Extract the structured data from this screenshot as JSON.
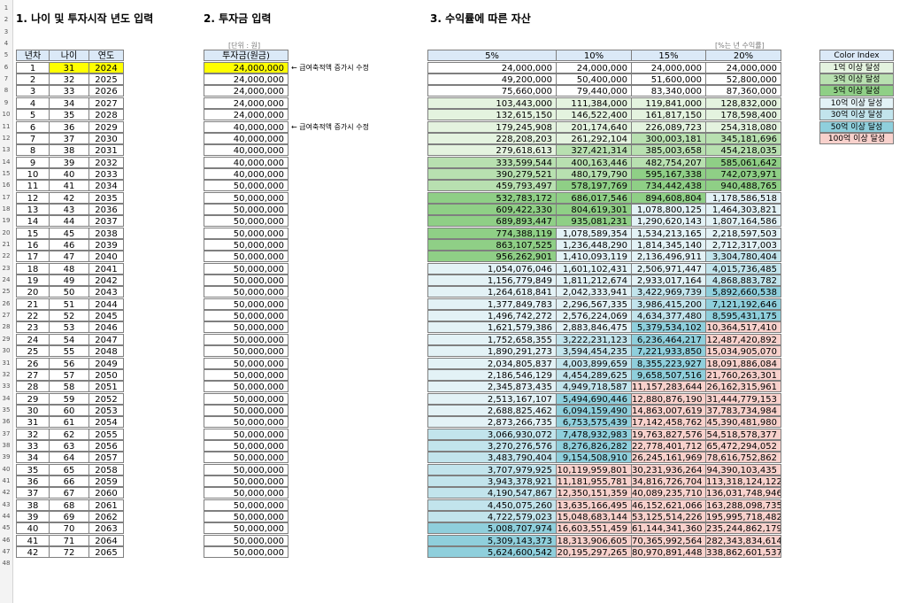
{
  "titles": {
    "section1": "1. 나이 및 투자시작 년도 입력",
    "section2": "2. 투자금 입력",
    "section3": "3. 수익률에 따른 자산"
  },
  "unit_label": "[단위 : 원]",
  "rate_label": "[%는 년 수익률]",
  "table1": {
    "headers": [
      "년차",
      "나이",
      "연도"
    ],
    "rows": [
      [
        "1",
        "31",
        "2024"
      ],
      [
        "2",
        "32",
        "2025"
      ],
      [
        "3",
        "33",
        "2026"
      ],
      [
        "4",
        "34",
        "2027"
      ],
      [
        "5",
        "35",
        "2028"
      ],
      [
        "6",
        "36",
        "2029"
      ],
      [
        "7",
        "37",
        "2030"
      ],
      [
        "8",
        "38",
        "2031"
      ],
      [
        "9",
        "39",
        "2032"
      ],
      [
        "10",
        "40",
        "2033"
      ],
      [
        "11",
        "41",
        "2034"
      ],
      [
        "12",
        "42",
        "2035"
      ],
      [
        "13",
        "43",
        "2036"
      ],
      [
        "14",
        "44",
        "2037"
      ],
      [
        "15",
        "45",
        "2038"
      ],
      [
        "16",
        "46",
        "2039"
      ],
      [
        "17",
        "47",
        "2040"
      ],
      [
        "18",
        "48",
        "2041"
      ],
      [
        "19",
        "49",
        "2042"
      ],
      [
        "20",
        "50",
        "2043"
      ],
      [
        "21",
        "51",
        "2044"
      ],
      [
        "22",
        "52",
        "2045"
      ],
      [
        "23",
        "53",
        "2046"
      ],
      [
        "24",
        "54",
        "2047"
      ],
      [
        "25",
        "55",
        "2048"
      ],
      [
        "26",
        "56",
        "2049"
      ],
      [
        "27",
        "57",
        "2050"
      ],
      [
        "28",
        "58",
        "2051"
      ],
      [
        "29",
        "59",
        "2052"
      ],
      [
        "30",
        "60",
        "2053"
      ],
      [
        "31",
        "61",
        "2054"
      ],
      [
        "32",
        "62",
        "2055"
      ],
      [
        "33",
        "63",
        "2056"
      ],
      [
        "34",
        "64",
        "2057"
      ],
      [
        "35",
        "65",
        "2058"
      ],
      [
        "36",
        "66",
        "2059"
      ],
      [
        "37",
        "67",
        "2060"
      ],
      [
        "38",
        "68",
        "2061"
      ],
      [
        "39",
        "69",
        "2062"
      ],
      [
        "40",
        "70",
        "2063"
      ],
      [
        "41",
        "71",
        "2064"
      ],
      [
        "42",
        "72",
        "2065"
      ]
    ]
  },
  "table2": {
    "header": "투자금(원금)",
    "values": [
      "24,000,000",
      "24,000,000",
      "24,000,000",
      "24,000,000",
      "24,000,000",
      "40,000,000",
      "40,000,000",
      "40,000,000",
      "40,000,000",
      "40,000,000",
      "50,000,000",
      "50,000,000",
      "50,000,000",
      "50,000,000",
      "50,000,000",
      "50,000,000",
      "50,000,000",
      "50,000,000",
      "50,000,000",
      "50,000,000",
      "50,000,000",
      "50,000,000",
      "50,000,000",
      "50,000,000",
      "50,000,000",
      "50,000,000",
      "50,000,000",
      "50,000,000",
      "50,000,000",
      "50,000,000",
      "50,000,000",
      "50,000,000",
      "50,000,000",
      "50,000,000",
      "50,000,000",
      "50,000,000",
      "50,000,000",
      "50,000,000",
      "50,000,000",
      "50,000,000",
      "50,000,000",
      "50,000,000"
    ],
    "notes": [
      {
        "row": 6,
        "text": "← 급여축적액 증가시 수정"
      },
      {
        "row": 11,
        "text": "← 급여축적액 증가시 수정"
      }
    ]
  },
  "table3": {
    "headers": [
      "5%",
      "10%",
      "15%",
      "20%"
    ],
    "rows": [
      [
        "24,000,000",
        "24,000,000",
        "24,000,000",
        "24,000,000"
      ],
      [
        "49,200,000",
        "50,400,000",
        "51,600,000",
        "52,800,000"
      ],
      [
        "75,660,000",
        "79,440,000",
        "83,340,000",
        "87,360,000"
      ],
      [
        "103,443,000",
        "111,384,000",
        "119,841,000",
        "128,832,000"
      ],
      [
        "132,615,150",
        "146,522,400",
        "161,817,150",
        "178,598,400"
      ],
      [
        "179,245,908",
        "201,174,640",
        "226,089,723",
        "254,318,080"
      ],
      [
        "228,208,203",
        "261,292,104",
        "300,003,181",
        "345,181,696"
      ],
      [
        "279,618,613",
        "327,421,314",
        "385,003,658",
        "454,218,035"
      ],
      [
        "333,599,544",
        "400,163,446",
        "482,754,207",
        "585,061,642"
      ],
      [
        "390,279,521",
        "480,179,790",
        "595,167,338",
        "742,073,971"
      ],
      [
        "459,793,497",
        "578,197,769",
        "734,442,438",
        "940,488,765"
      ],
      [
        "532,783,172",
        "686,017,546",
        "894,608,804",
        "1,178,586,518"
      ],
      [
        "609,422,330",
        "804,619,301",
        "1,078,800,125",
        "1,464,303,821"
      ],
      [
        "689,893,447",
        "935,081,231",
        "1,290,620,143",
        "1,807,164,586"
      ],
      [
        "774,388,119",
        "1,078,589,354",
        "1,534,213,165",
        "2,218,597,503"
      ],
      [
        "863,107,525",
        "1,236,448,290",
        "1,814,345,140",
        "2,712,317,003"
      ],
      [
        "956,262,901",
        "1,410,093,119",
        "2,136,496,911",
        "3,304,780,404"
      ],
      [
        "1,054,076,046",
        "1,601,102,431",
        "2,506,971,447",
        "4,015,736,485"
      ],
      [
        "1,156,779,849",
        "1,811,212,674",
        "2,933,017,164",
        "4,868,883,782"
      ],
      [
        "1,264,618,841",
        "2,042,333,941",
        "3,422,969,739",
        "5,892,660,538"
      ],
      [
        "1,377,849,783",
        "2,296,567,335",
        "3,986,415,200",
        "7,121,192,646"
      ],
      [
        "1,496,742,272",
        "2,576,224,069",
        "4,634,377,480",
        "8,595,431,175"
      ],
      [
        "1,621,579,386",
        "2,883,846,475",
        "5,379,534,102",
        "10,364,517,410"
      ],
      [
        "1,752,658,355",
        "3,222,231,123",
        "6,236,464,217",
        "12,487,420,892"
      ],
      [
        "1,890,291,273",
        "3,594,454,235",
        "7,221,933,850",
        "15,034,905,070"
      ],
      [
        "2,034,805,837",
        "4,003,899,659",
        "8,355,223,927",
        "18,091,886,084"
      ],
      [
        "2,186,546,129",
        "4,454,289,625",
        "9,658,507,516",
        "21,760,263,301"
      ],
      [
        "2,345,873,435",
        "4,949,718,587",
        "11,157,283,644",
        "26,162,315,961"
      ],
      [
        "2,513,167,107",
        "5,494,690,446",
        "12,880,876,190",
        "31,444,779,153"
      ],
      [
        "2,688,825,462",
        "6,094,159,490",
        "14,863,007,619",
        "37,783,734,984"
      ],
      [
        "2,873,266,735",
        "6,753,575,439",
        "17,142,458,762",
        "45,390,481,980"
      ],
      [
        "3,066,930,072",
        "7,478,932,983",
        "19,763,827,576",
        "54,518,578,377"
      ],
      [
        "3,270,276,576",
        "8,276,826,282",
        "22,778,401,712",
        "65,472,294,052"
      ],
      [
        "3,483,790,404",
        "9,154,508,910",
        "26,245,161,969",
        "78,616,752,862"
      ],
      [
        "3,707,979,925",
        "10,119,959,801",
        "30,231,936,264",
        "94,390,103,435"
      ],
      [
        "3,943,378,921",
        "11,181,955,781",
        "34,816,726,704",
        "113,318,124,122"
      ],
      [
        "4,190,547,867",
        "12,350,151,359",
        "40,089,235,710",
        "136,031,748,946"
      ],
      [
        "4,450,075,260",
        "13,635,166,495",
        "46,152,621,066",
        "163,288,098,735"
      ],
      [
        "4,722,579,023",
        "15,048,683,144",
        "53,125,514,226",
        "195,995,718,482"
      ],
      [
        "5,008,707,974",
        "16,603,551,459",
        "61,144,341,360",
        "235,244,862,179"
      ],
      [
        "5,309,143,373",
        "18,313,906,605",
        "70,365,992,564",
        "282,343,834,614"
      ],
      [
        "5,624,600,542",
        "20,195,297,265",
        "80,970,891,448",
        "338,862,601,537"
      ]
    ]
  },
  "color_index": {
    "header": "Color Index",
    "items": [
      {
        "label": "1억 이상 달성",
        "color": "#e4f3df"
      },
      {
        "label": "3억 이상 달성",
        "color": "#b8e0b0"
      },
      {
        "label": "5억 이상 달성",
        "color": "#8fcf86"
      },
      {
        "label": "10억 이상 달성",
        "color": "#e3f2f6"
      },
      {
        "label": "30억 이상 달성",
        "color": "#c2e4ec"
      },
      {
        "label": "50억 이상 달성",
        "color": "#8fcfdc"
      },
      {
        "label": "100억 이상 달성",
        "color": "#f8d1cc"
      }
    ]
  },
  "row_numbers": [
    "1",
    "2",
    "3",
    "4",
    "5",
    "6",
    "7",
    "8",
    "9",
    "10",
    "11",
    "12",
    "13",
    "14",
    "15",
    "16",
    "17",
    "18",
    "19",
    "20",
    "21",
    "22",
    "23",
    "24",
    "25",
    "26",
    "27",
    "28",
    "29",
    "30",
    "31",
    "32",
    "33",
    "34",
    "35",
    "36",
    "37",
    "38",
    "39",
    "40",
    "41",
    "42",
    "43",
    "44",
    "45",
    "46",
    "47",
    "48"
  ]
}
